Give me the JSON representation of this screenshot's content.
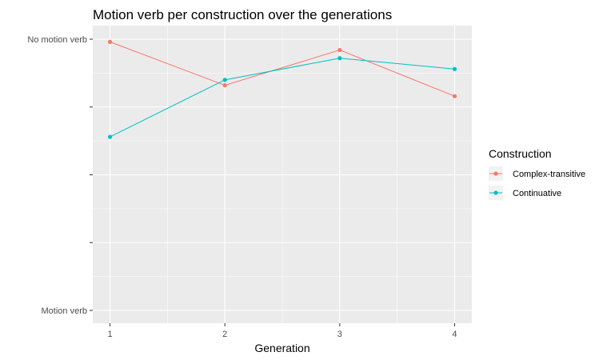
{
  "chart_data": {
    "type": "line",
    "title": "Motion verb per construction over the generations",
    "xlabel": "Generation",
    "ylabel": "",
    "x": [
      1,
      2,
      3,
      4
    ],
    "x_tick_labels": [
      "1",
      "2",
      "3",
      "4"
    ],
    "ylim": [
      0,
      1
    ],
    "y_ticks": [
      0,
      0.25,
      0.5,
      0.75,
      1
    ],
    "y_tick_labels": [
      "Motion verb",
      "",
      "",
      "",
      "No motion verb"
    ],
    "grid": true,
    "legend": {
      "title": "Construction",
      "position": "right"
    },
    "series": [
      {
        "name": "Complex-transitive",
        "color": "#F8766D",
        "values": [
          0.99,
          0.83,
          0.96,
          0.79
        ]
      },
      {
        "name": "Continuative",
        "color": "#00BFC4",
        "values": [
          0.64,
          0.85,
          0.93,
          0.89
        ]
      }
    ]
  }
}
